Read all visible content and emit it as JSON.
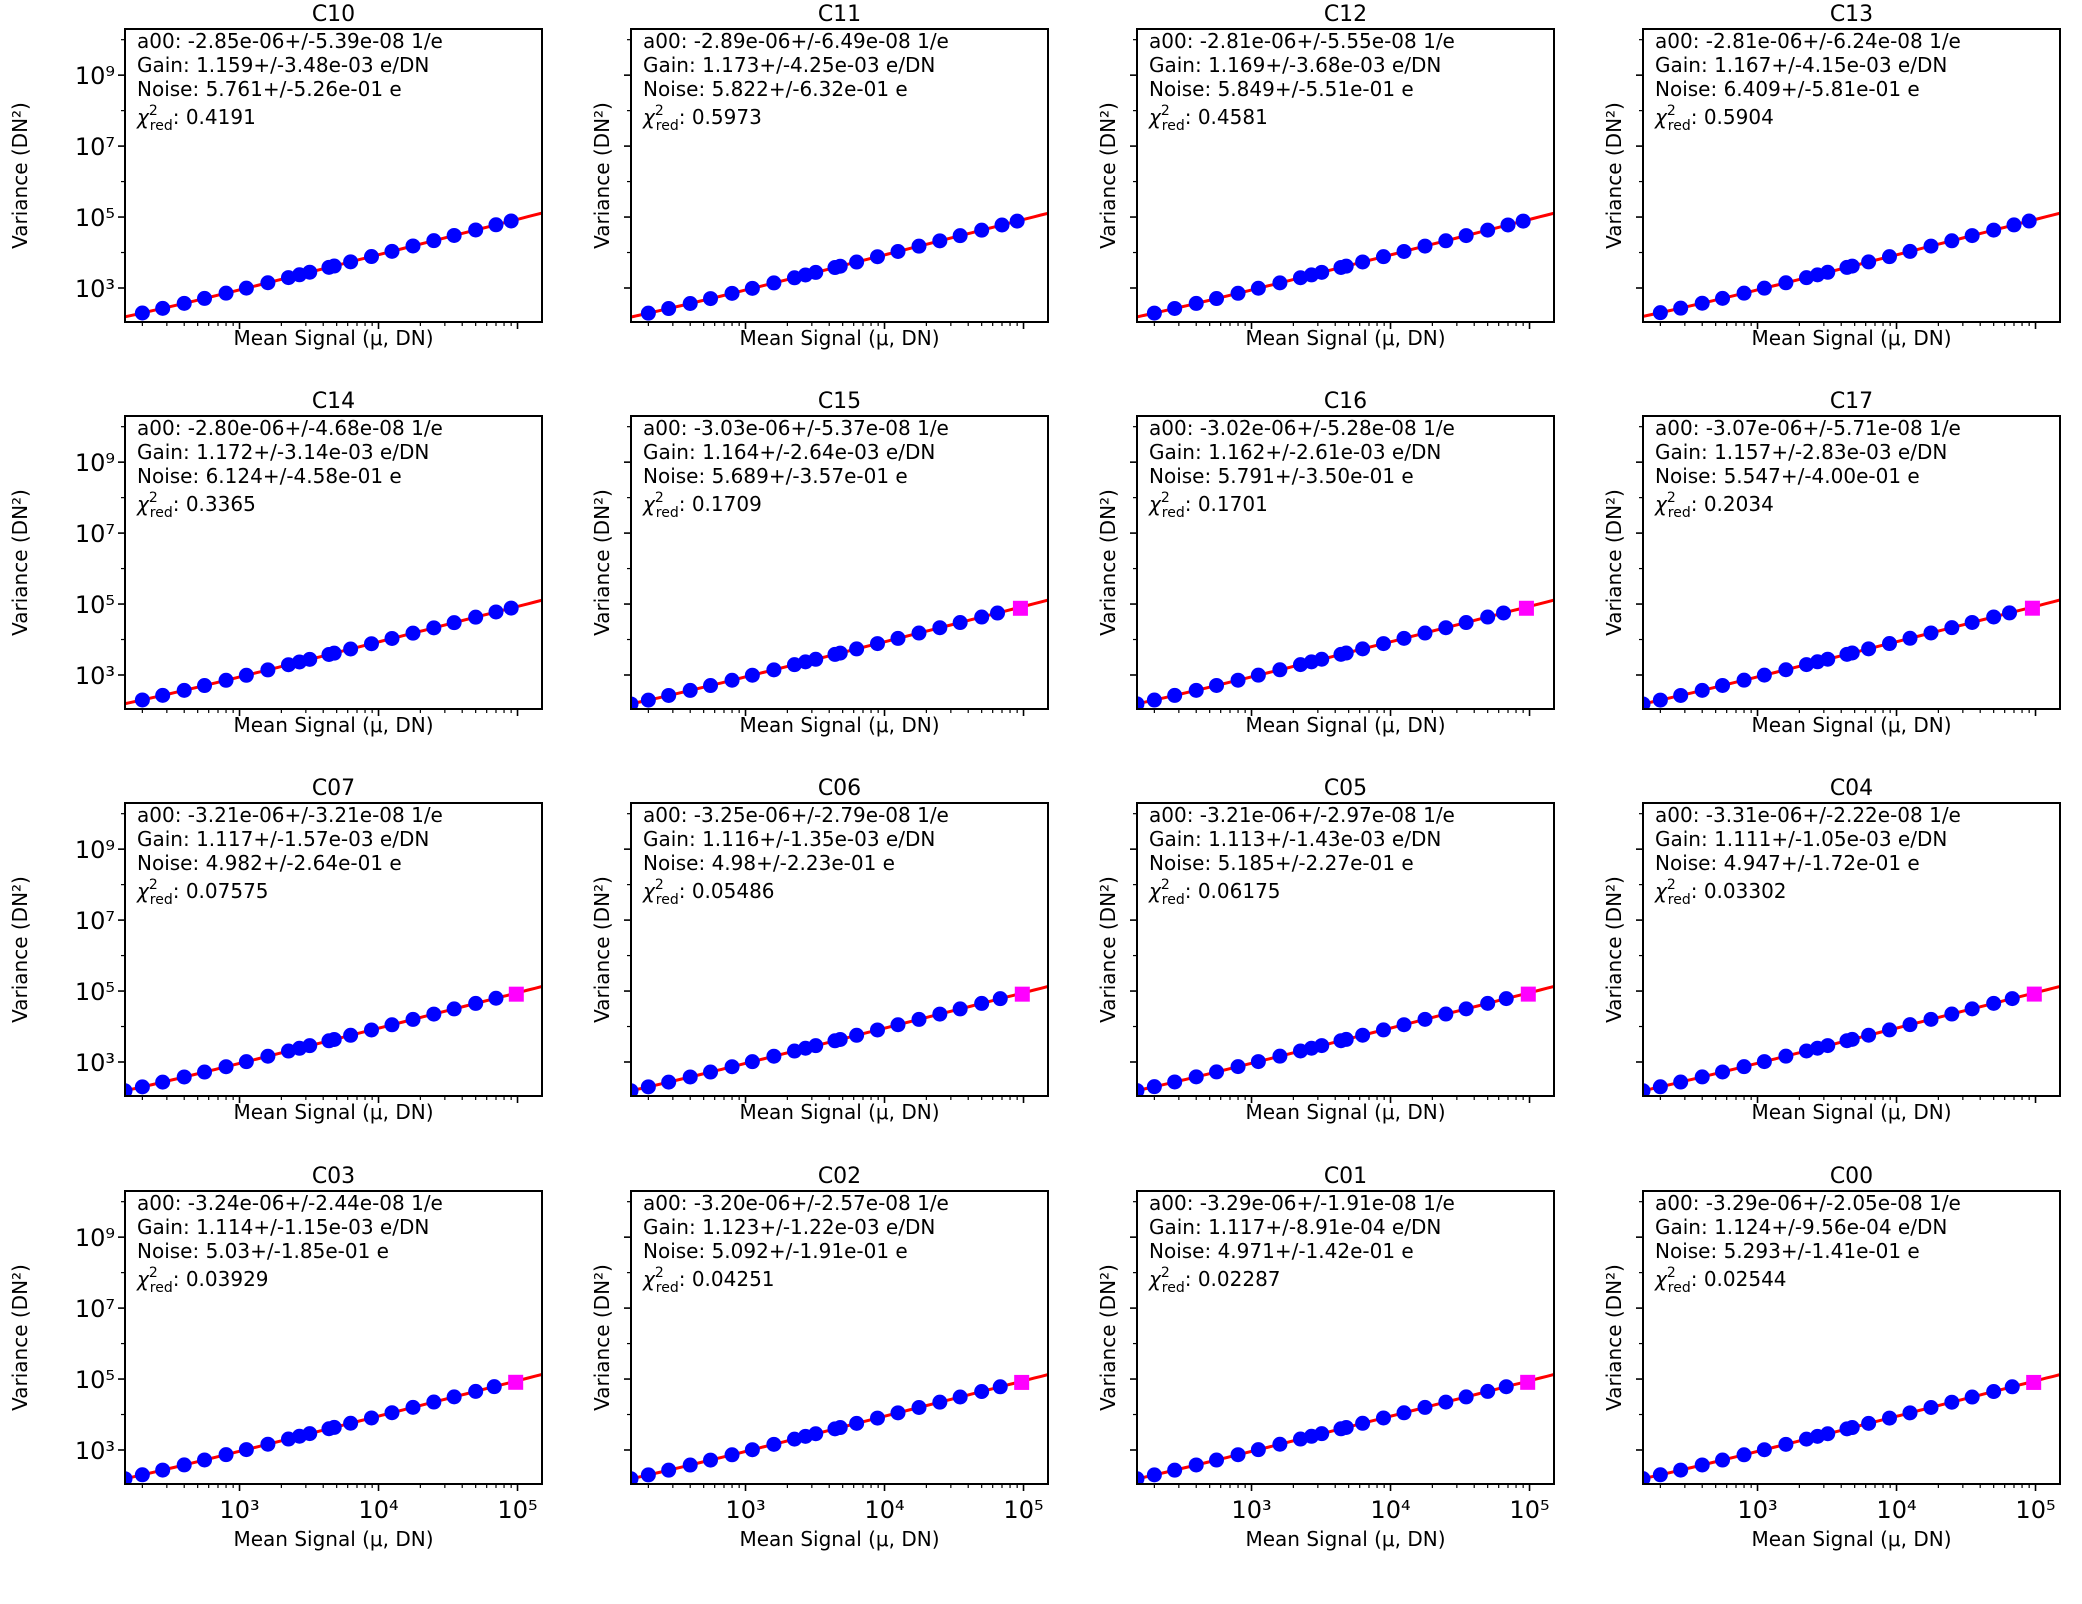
{
  "figure": {
    "xlabel": "Mean Signal (μ, DN)",
    "ylabel": "Variance (DN²)",
    "x_tick_labels": [
      "10³",
      "10⁴",
      "10⁵"
    ],
    "y_tick_labels": [
      "10³",
      "10⁵",
      "10⁷",
      "10⁹"
    ],
    "colors": {
      "points": "#0000ff",
      "fit": "#ff0000",
      "excluded": "#ff00ff"
    }
  },
  "chart_data": [
    {
      "type": "scatter",
      "title": "C10",
      "xscale": "log",
      "yscale": "log",
      "xlim": [
        150,
        150000
      ],
      "ylim": [
        110,
        20000000000
      ],
      "xlabel": "Mean Signal (μ, DN)",
      "ylabel": "Variance (DN²)",
      "grid": false,
      "annotations": {
        "a00": "a00: -2.85e-06+/-5.39e-08 1/e",
        "gain": "Gain: 1.159+/-3.48e-03 e/DN",
        "noise": "Noise: 5.761+/-5.26e-01 e",
        "chi2": ": 0.4191"
      },
      "gain": 1.159,
      "noise": 5.761,
      "points_x": [
        200,
        280,
        400,
        560,
        800,
        1120,
        1600,
        2250,
        2700,
        3200,
        4400,
        4800,
        6300,
        8900,
        12500,
        17700,
        25000,
        35000,
        50000,
        70000,
        90000
      ],
      "excluded_x": [],
      "x_tick_labels_shown": false
    },
    {
      "type": "scatter",
      "title": "C11",
      "xscale": "log",
      "yscale": "log",
      "xlim": [
        150,
        150000
      ],
      "ylim": [
        110,
        20000000000
      ],
      "xlabel": "Mean Signal (μ, DN)",
      "ylabel": "Variance (DN²)",
      "grid": false,
      "annotations": {
        "a00": "a00: -2.89e-06+/-6.49e-08 1/e",
        "gain": "Gain: 1.173+/-4.25e-03 e/DN",
        "noise": "Noise: 5.822+/-6.32e-01 e",
        "chi2": ": 0.5973"
      },
      "gain": 1.173,
      "noise": 5.822,
      "points_x": [
        200,
        280,
        400,
        560,
        800,
        1120,
        1600,
        2250,
        2700,
        3200,
        4400,
        4800,
        6300,
        8900,
        12500,
        17700,
        25000,
        35000,
        50000,
        70000,
        90000
      ],
      "excluded_x": [],
      "x_tick_labels_shown": false
    },
    {
      "type": "scatter",
      "title": "C12",
      "xscale": "log",
      "yscale": "log",
      "xlim": [
        150,
        150000
      ],
      "ylim": [
        110,
        20000000000
      ],
      "xlabel": "Mean Signal (μ, DN)",
      "ylabel": "Variance (DN²)",
      "grid": false,
      "annotations": {
        "a00": "a00: -2.81e-06+/-5.55e-08 1/e",
        "gain": "Gain: 1.169+/-3.68e-03 e/DN",
        "noise": "Noise: 5.849+/-5.51e-01 e",
        "chi2": ": 0.4581"
      },
      "gain": 1.169,
      "noise": 5.849,
      "points_x": [
        200,
        280,
        400,
        560,
        800,
        1120,
        1600,
        2250,
        2700,
        3200,
        4400,
        4800,
        6300,
        8900,
        12500,
        17700,
        25000,
        35000,
        50000,
        70000,
        90000
      ],
      "excluded_x": [],
      "x_tick_labels_shown": false
    },
    {
      "type": "scatter",
      "title": "C13",
      "xscale": "log",
      "yscale": "log",
      "xlim": [
        150,
        150000
      ],
      "ylim": [
        110,
        20000000000
      ],
      "xlabel": "Mean Signal (μ, DN)",
      "ylabel": "Variance (DN²)",
      "grid": false,
      "annotations": {
        "a00": "a00: -2.81e-06+/-6.24e-08 1/e",
        "gain": "Gain: 1.167+/-4.15e-03 e/DN",
        "noise": "Noise: 6.409+/-5.81e-01 e",
        "chi2": ": 0.5904"
      },
      "gain": 1.167,
      "noise": 6.409,
      "points_x": [
        200,
        280,
        400,
        560,
        800,
        1120,
        1600,
        2250,
        2700,
        3200,
        4400,
        4800,
        6300,
        8900,
        12500,
        17700,
        25000,
        35000,
        50000,
        70000,
        90000
      ],
      "excluded_x": [],
      "x_tick_labels_shown": false
    },
    {
      "type": "scatter",
      "title": "C14",
      "xscale": "log",
      "yscale": "log",
      "xlim": [
        150,
        150000
      ],
      "ylim": [
        110,
        20000000000
      ],
      "xlabel": "Mean Signal (μ, DN)",
      "ylabel": "Variance (DN²)",
      "grid": false,
      "annotations": {
        "a00": "a00: -2.80e-06+/-4.68e-08 1/e",
        "gain": "Gain: 1.172+/-3.14e-03 e/DN",
        "noise": "Noise: 6.124+/-4.58e-01 e",
        "chi2": ": 0.3365"
      },
      "gain": 1.172,
      "noise": 6.124,
      "points_x": [
        200,
        280,
        400,
        560,
        800,
        1120,
        1600,
        2250,
        2700,
        3200,
        4400,
        4800,
        6300,
        8900,
        12500,
        17700,
        25000,
        35000,
        50000,
        70000,
        90000
      ],
      "excluded_x": [],
      "x_tick_labels_shown": false
    },
    {
      "type": "scatter",
      "title": "C15",
      "xscale": "log",
      "yscale": "log",
      "xlim": [
        150,
        150000
      ],
      "ylim": [
        110,
        20000000000
      ],
      "xlabel": "Mean Signal (μ, DN)",
      "ylabel": "Variance (DN²)",
      "grid": false,
      "annotations": {
        "a00": "a00: -3.03e-06+/-5.37e-08 1/e",
        "gain": "Gain: 1.164+/-2.64e-03 e/DN",
        "noise": "Noise: 5.689+/-3.57e-01 e",
        "chi2": ": 0.1709"
      },
      "gain": 1.164,
      "noise": 5.689,
      "points_x": [
        150,
        200,
        280,
        400,
        560,
        800,
        1120,
        1600,
        2250,
        2700,
        3200,
        4400,
        4800,
        6300,
        8900,
        12500,
        17700,
        25000,
        35000,
        50000,
        65000
      ],
      "excluded_x": [
        95000
      ],
      "x_tick_labels_shown": false
    },
    {
      "type": "scatter",
      "title": "C16",
      "xscale": "log",
      "yscale": "log",
      "xlim": [
        150,
        150000
      ],
      "ylim": [
        110,
        20000000000
      ],
      "xlabel": "Mean Signal (μ, DN)",
      "ylabel": "Variance (DN²)",
      "grid": false,
      "annotations": {
        "a00": "a00: -3.02e-06+/-5.28e-08 1/e",
        "gain": "Gain: 1.162+/-2.61e-03 e/DN",
        "noise": "Noise: 5.791+/-3.50e-01 e",
        "chi2": ": 0.1701"
      },
      "gain": 1.162,
      "noise": 5.791,
      "points_x": [
        150,
        200,
        280,
        400,
        560,
        800,
        1120,
        1600,
        2250,
        2700,
        3200,
        4400,
        4800,
        6300,
        8900,
        12500,
        17700,
        25000,
        35000,
        50000,
        65000
      ],
      "excluded_x": [
        95000
      ],
      "x_tick_labels_shown": false
    },
    {
      "type": "scatter",
      "title": "C17",
      "xscale": "log",
      "yscale": "log",
      "xlim": [
        150,
        150000
      ],
      "ylim": [
        110,
        20000000000
      ],
      "xlabel": "Mean Signal (μ, DN)",
      "ylabel": "Variance (DN²)",
      "grid": false,
      "annotations": {
        "a00": "a00: -3.07e-06+/-5.71e-08 1/e",
        "gain": "Gain: 1.157+/-2.83e-03 e/DN",
        "noise": "Noise: 5.547+/-4.00e-01 e",
        "chi2": ": 0.2034"
      },
      "gain": 1.157,
      "noise": 5.547,
      "points_x": [
        150,
        200,
        280,
        400,
        560,
        800,
        1120,
        1600,
        2250,
        2700,
        3200,
        4400,
        4800,
        6300,
        8900,
        12500,
        17700,
        25000,
        35000,
        50000,
        65000
      ],
      "excluded_x": [
        95000
      ],
      "x_tick_labels_shown": false
    },
    {
      "type": "scatter",
      "title": "C07",
      "xscale": "log",
      "yscale": "log",
      "xlim": [
        150,
        150000
      ],
      "ylim": [
        110,
        20000000000
      ],
      "xlabel": "Mean Signal (μ, DN)",
      "ylabel": "Variance (DN²)",
      "grid": false,
      "annotations": {
        "a00": "a00: -3.21e-06+/-3.21e-08 1/e",
        "gain": "Gain: 1.117+/-1.57e-03 e/DN",
        "noise": "Noise: 4.982+/-2.64e-01 e",
        "chi2": ": 0.07575"
      },
      "gain": 1.117,
      "noise": 4.982,
      "points_x": [
        150,
        200,
        280,
        400,
        560,
        800,
        1120,
        1600,
        2250,
        2700,
        3200,
        4400,
        4800,
        6300,
        8900,
        12500,
        17700,
        25000,
        35000,
        50000,
        70000
      ],
      "excluded_x": [
        98000
      ],
      "x_tick_labels_shown": false
    },
    {
      "type": "scatter",
      "title": "C06",
      "xscale": "log",
      "yscale": "log",
      "xlim": [
        150,
        150000
      ],
      "ylim": [
        110,
        20000000000
      ],
      "xlabel": "Mean Signal (μ, DN)",
      "ylabel": "Variance (DN²)",
      "grid": false,
      "annotations": {
        "a00": "a00: -3.25e-06+/-2.79e-08 1/e",
        "gain": "Gain: 1.116+/-1.35e-03 e/DN",
        "noise": "Noise: 4.98+/-2.23e-01 e",
        "chi2": ": 0.05486"
      },
      "gain": 1.116,
      "noise": 4.98,
      "points_x": [
        150,
        200,
        280,
        400,
        560,
        800,
        1120,
        1600,
        2250,
        2700,
        3200,
        4400,
        4800,
        6300,
        8900,
        12500,
        17700,
        25000,
        35000,
        50000,
        68000
      ],
      "excluded_x": [
        98000
      ],
      "x_tick_labels_shown": false
    },
    {
      "type": "scatter",
      "title": "C05",
      "xscale": "log",
      "yscale": "log",
      "xlim": [
        150,
        150000
      ],
      "ylim": [
        110,
        20000000000
      ],
      "xlabel": "Mean Signal (μ, DN)",
      "ylabel": "Variance (DN²)",
      "grid": false,
      "annotations": {
        "a00": "a00: -3.21e-06+/-2.97e-08 1/e",
        "gain": "Gain: 1.113+/-1.43e-03 e/DN",
        "noise": "Noise: 5.185+/-2.27e-01 e",
        "chi2": ": 0.06175"
      },
      "gain": 1.113,
      "noise": 5.185,
      "points_x": [
        150,
        200,
        280,
        400,
        560,
        800,
        1120,
        1600,
        2250,
        2700,
        3200,
        4400,
        4800,
        6300,
        8900,
        12500,
        17700,
        25000,
        35000,
        50000,
        68000
      ],
      "excluded_x": [
        98000
      ],
      "x_tick_labels_shown": false
    },
    {
      "type": "scatter",
      "title": "C04",
      "xscale": "log",
      "yscale": "log",
      "xlim": [
        150,
        150000
      ],
      "ylim": [
        110,
        20000000000
      ],
      "xlabel": "Mean Signal (μ, DN)",
      "ylabel": "Variance (DN²)",
      "grid": false,
      "annotations": {
        "a00": "a00: -3.31e-06+/-2.22e-08 1/e",
        "gain": "Gain: 1.111+/-1.05e-03 e/DN",
        "noise": "Noise: 4.947+/-1.72e-01 e",
        "chi2": ": 0.03302"
      },
      "gain": 1.111,
      "noise": 4.947,
      "points_x": [
        150,
        200,
        280,
        400,
        560,
        800,
        1120,
        1600,
        2250,
        2700,
        3200,
        4400,
        4800,
        6300,
        8900,
        12500,
        17700,
        25000,
        35000,
        50000,
        68000
      ],
      "excluded_x": [
        98000
      ],
      "x_tick_labels_shown": false
    },
    {
      "type": "scatter",
      "title": "C03",
      "xscale": "log",
      "yscale": "log",
      "xlim": [
        150,
        150000
      ],
      "ylim": [
        110,
        20000000000
      ],
      "xlabel": "Mean Signal (μ, DN)",
      "ylabel": "Variance (DN²)",
      "grid": false,
      "annotations": {
        "a00": "a00: -3.24e-06+/-2.44e-08 1/e",
        "gain": "Gain: 1.114+/-1.15e-03 e/DN",
        "noise": "Noise: 5.03+/-1.85e-01 e",
        "chi2": ": 0.03929"
      },
      "gain": 1.114,
      "noise": 5.03,
      "points_x": [
        150,
        200,
        280,
        400,
        560,
        800,
        1120,
        1600,
        2250,
        2700,
        3200,
        4400,
        4800,
        6300,
        8900,
        12500,
        17700,
        25000,
        35000,
        50000,
        68000
      ],
      "excluded_x": [
        97000
      ],
      "x_tick_labels_shown": true
    },
    {
      "type": "scatter",
      "title": "C02",
      "xscale": "log",
      "yscale": "log",
      "xlim": [
        150,
        150000
      ],
      "ylim": [
        110,
        20000000000
      ],
      "xlabel": "Mean Signal (μ, DN)",
      "ylabel": "Variance (DN²)",
      "grid": false,
      "annotations": {
        "a00": "a00: -3.20e-06+/-2.57e-08 1/e",
        "gain": "Gain: 1.123+/-1.22e-03 e/DN",
        "noise": "Noise: 5.092+/-1.91e-01 e",
        "chi2": ": 0.04251"
      },
      "gain": 1.123,
      "noise": 5.092,
      "points_x": [
        150,
        200,
        280,
        400,
        560,
        800,
        1120,
        1600,
        2250,
        2700,
        3200,
        4400,
        4800,
        6300,
        8900,
        12500,
        17700,
        25000,
        35000,
        50000,
        68000
      ],
      "excluded_x": [
        97000
      ],
      "x_tick_labels_shown": true
    },
    {
      "type": "scatter",
      "title": "C01",
      "xscale": "log",
      "yscale": "log",
      "xlim": [
        150,
        150000
      ],
      "ylim": [
        110,
        20000000000
      ],
      "xlabel": "Mean Signal (μ, DN)",
      "ylabel": "Variance (DN²)",
      "grid": false,
      "annotations": {
        "a00": "a00: -3.29e-06+/-1.91e-08 1/e",
        "gain": "Gain: 1.117+/-8.91e-04 e/DN",
        "noise": "Noise: 4.971+/-1.42e-01 e",
        "chi2": ": 0.02287"
      },
      "gain": 1.117,
      "noise": 4.971,
      "points_x": [
        150,
        200,
        280,
        400,
        560,
        800,
        1120,
        1600,
        2250,
        2700,
        3200,
        4400,
        4800,
        6300,
        8900,
        12500,
        17700,
        25000,
        35000,
        50000,
        68000
      ],
      "excluded_x": [
        97000
      ],
      "x_tick_labels_shown": true
    },
    {
      "type": "scatter",
      "title": "C00",
      "xscale": "log",
      "yscale": "log",
      "xlim": [
        150,
        150000
      ],
      "ylim": [
        110,
        20000000000
      ],
      "xlabel": "Mean Signal (μ, DN)",
      "ylabel": "Variance (DN²)",
      "grid": false,
      "annotations": {
        "a00": "a00: -3.29e-06+/-2.05e-08 1/e",
        "gain": "Gain: 1.124+/-9.56e-04 e/DN",
        "noise": "Noise: 5.293+/-1.41e-01 e",
        "chi2": ": 0.02544"
      },
      "gain": 1.124,
      "noise": 5.293,
      "points_x": [
        150,
        200,
        280,
        400,
        560,
        800,
        1120,
        1600,
        2250,
        2700,
        3200,
        4400,
        4800,
        6300,
        8900,
        12500,
        17700,
        25000,
        35000,
        50000,
        68000
      ],
      "excluded_x": [
        97000
      ],
      "x_tick_labels_shown": true
    }
  ]
}
